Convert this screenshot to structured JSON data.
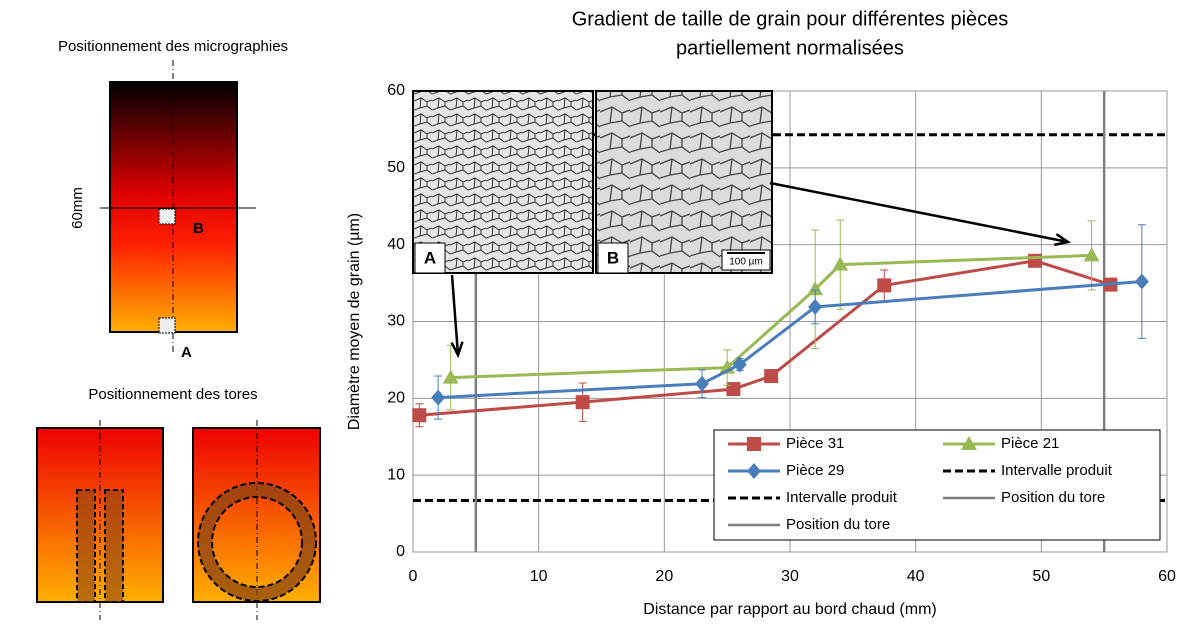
{
  "diagram": {
    "micro_title": "Positionnement des micrographies",
    "dimension": "60mm",
    "label_b": "B",
    "label_a": "A",
    "tore_title": "Positionnement des tores"
  },
  "chart_data": {
    "type": "line",
    "title_lines": [
      "Gradient de taille de grain pour différentes pièces",
      "partiellement normalisées"
    ],
    "x_label": "Distance par rapport au bord chaud (mm)",
    "y_label": "Diamètre moyen de grain (µm)",
    "xlim": [
      0,
      60
    ],
    "xticks": [
      0,
      10,
      20,
      30,
      40,
      50,
      60
    ],
    "ylim": [
      0,
      60
    ],
    "yticks": [
      0,
      10,
      20,
      30,
      40,
      50,
      60
    ],
    "grid": true,
    "series": [
      {
        "name": "Pièce 31",
        "color": "#be4b48",
        "marker": "square",
        "x": [
          0.5,
          13.5,
          25.5,
          28.5,
          37.5,
          49.5,
          55.5
        ],
        "values": [
          17.8,
          19.5,
          21.2,
          22.9,
          34.7,
          37.9,
          34.8
        ],
        "errors": [
          1.5,
          2.5,
          0.8,
          0.6,
          2,
          0.8,
          0.8
        ]
      },
      {
        "name": "Pièce 21",
        "color": "#98b954",
        "marker": "triangle",
        "x": [
          3,
          25,
          32,
          34,
          54
        ],
        "values": [
          22.7,
          24,
          34.2,
          37.4,
          38.6
        ],
        "errors": [
          4.2,
          2.3,
          7.7,
          5.8,
          4.5
        ]
      },
      {
        "name": "Pièce 29",
        "color": "#4a7ebb",
        "marker": "diamond",
        "x": [
          2,
          23,
          26,
          32,
          58
        ],
        "values": [
          20.1,
          21.9,
          24.4,
          31.9,
          35.2
        ],
        "errors": [
          2.8,
          1.8,
          0.8,
          2.2,
          7.4
        ]
      }
    ],
    "reference_lines": [
      {
        "name": "Intervalle produit",
        "y": 54.3,
        "color": "#000000",
        "style": "dashed"
      },
      {
        "name": "Intervalle produit",
        "y": 6.7,
        "color": "#000000",
        "style": "dashed"
      },
      {
        "name": "Position du tore",
        "x": 5,
        "color": "#7f7f7f",
        "style": "solid"
      },
      {
        "name": "Position du tore",
        "x": 55,
        "color": "#7f7f7f",
        "style": "solid"
      }
    ],
    "inset_labels": [
      "A",
      "B"
    ],
    "scale_bar": "100 µm"
  }
}
